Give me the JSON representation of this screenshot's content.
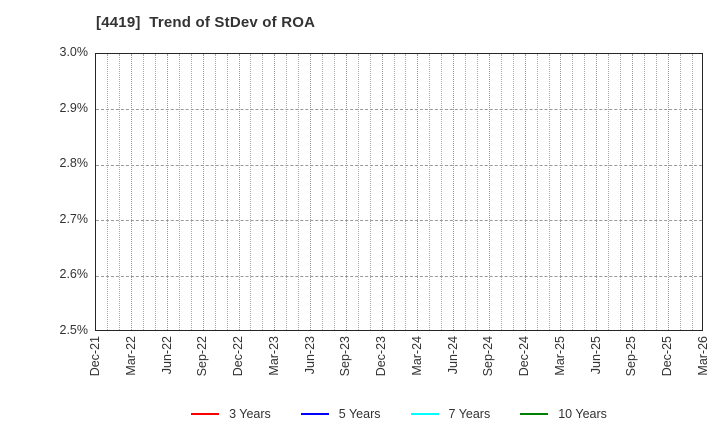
{
  "header": {
    "title": "[4419]  Trend of StDev of ROA"
  },
  "chart_data": {
    "type": "line",
    "title": "[4419]  Trend of StDev of ROA",
    "xlabel": "",
    "ylabel": "",
    "ylim": [
      2.5,
      3.0
    ],
    "y_tick_labels": [
      "3.0%",
      "2.9%",
      "2.8%",
      "2.7%",
      "2.6%",
      "2.5%"
    ],
    "x_tick_labels": [
      "Dec-21",
      "Mar-22",
      "Jun-22",
      "Sep-22",
      "Dec-22",
      "Mar-23",
      "Jun-23",
      "Sep-23",
      "Dec-23",
      "Mar-24",
      "Jun-24",
      "Sep-24",
      "Dec-24",
      "Mar-25",
      "Jun-25",
      "Sep-25",
      "Dec-25",
      "Mar-26"
    ],
    "months_per_labeled_tick": 3,
    "total_month_intervals": 51,
    "grid": true,
    "legend_position": "bottom",
    "series": [
      {
        "name": "3 Years",
        "color": "#ff0000",
        "values": []
      },
      {
        "name": "5 Years",
        "color": "#0000ff",
        "values": []
      },
      {
        "name": "7 Years",
        "color": "#00ffff",
        "values": []
      },
      {
        "name": "10 Years",
        "color": "#008000",
        "values": []
      }
    ]
  }
}
